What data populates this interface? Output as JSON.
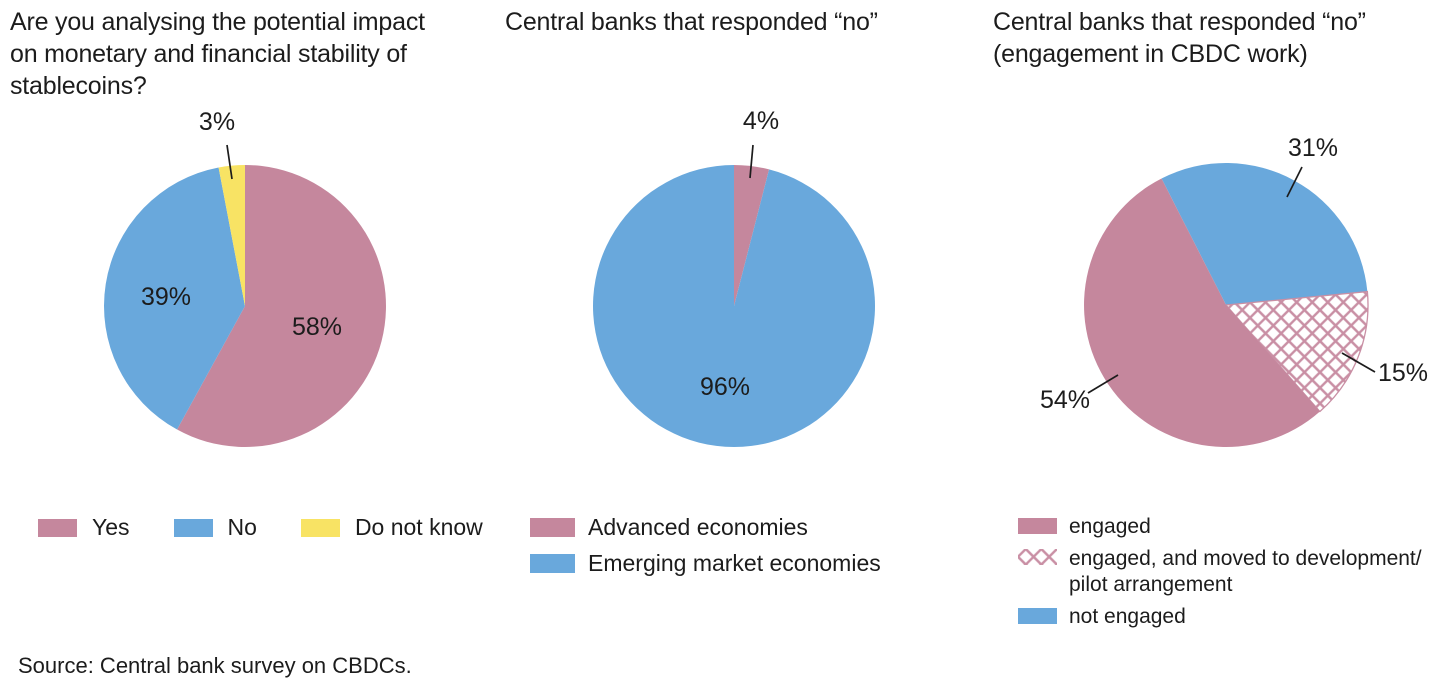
{
  "page": {
    "source_note": "Source: Central bank survey on CBDCs."
  },
  "colors": {
    "pink": "#c5879d",
    "blue": "#69a8dc",
    "yellow": "#f8e364",
    "hatch_line": "#c98fa4",
    "text": "#1c1c1c"
  },
  "chart_data": [
    {
      "type": "pie",
      "title": "Are you analysing the potential impact on monetary and financial stability of stablecoins?",
      "start_angle": 0,
      "legend_position": "bottom-row",
      "slices": [
        {
          "label": "Yes",
          "value": 58,
          "value_label": "58%",
          "color": "#c5879d"
        },
        {
          "label": "No",
          "value": 39,
          "value_label": "39%",
          "color": "#69a8dc"
        },
        {
          "label": "Do not know",
          "value": 3,
          "value_label": "3%",
          "color": "#f8e364"
        }
      ]
    },
    {
      "type": "pie",
      "title": "Central banks that responded “no”",
      "start_angle": 0,
      "legend_position": "bottom-column",
      "slices": [
        {
          "label": "Advanced economies",
          "value": 4,
          "value_label": "4%",
          "color": "#c5879d"
        },
        {
          "label": "Emerging market economies",
          "value": 96,
          "value_label": "96%",
          "color": "#69a8dc"
        }
      ]
    },
    {
      "type": "pie",
      "title": "Central banks that responded “no” (engagement in CBDC work)",
      "start_angle": -27,
      "legend_position": "bottom-column",
      "slices": [
        {
          "label": "not engaged",
          "value": 31,
          "value_label": "31%",
          "color": "#69a8dc"
        },
        {
          "label": "engaged, and moved to development/pilot arrangement",
          "value": 15,
          "value_label": "15%",
          "color": "#ffffff",
          "pattern": "crosshatch"
        },
        {
          "label": "engaged",
          "value": 54,
          "value_label": "54%",
          "color": "#c5879d"
        }
      ],
      "legend": [
        {
          "label": "engaged",
          "swatch": "#c5879d"
        },
        {
          "label": "engaged, and moved to development/",
          "label2": "pilot arrangement",
          "swatch": "crosshatch"
        },
        {
          "label": "not engaged",
          "swatch": "#69a8dc"
        }
      ]
    }
  ]
}
